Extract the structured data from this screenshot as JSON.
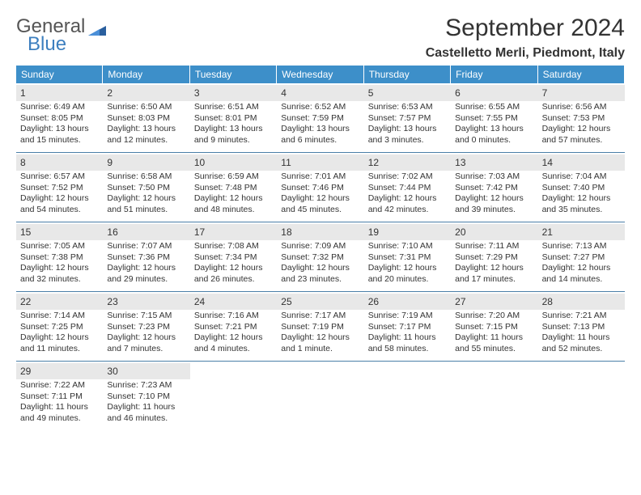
{
  "logo": {
    "line1": "General",
    "line2": "Blue"
  },
  "title": "September 2024",
  "location": "Castelletto Merli, Piedmont, Italy",
  "colors": {
    "header_bg": "#3d8fc9",
    "header_text": "#ffffff",
    "daynum_bg": "#e8e8e8",
    "cell_border": "#4a7fa8",
    "logo_gray": "#555555",
    "logo_blue": "#3d7fbf"
  },
  "days_of_week": [
    "Sunday",
    "Monday",
    "Tuesday",
    "Wednesday",
    "Thursday",
    "Friday",
    "Saturday"
  ],
  "cells": [
    {
      "d": "1",
      "sr": "Sunrise: 6:49 AM",
      "ss": "Sunset: 8:05 PM",
      "dl": "Daylight: 13 hours and 15 minutes."
    },
    {
      "d": "2",
      "sr": "Sunrise: 6:50 AM",
      "ss": "Sunset: 8:03 PM",
      "dl": "Daylight: 13 hours and 12 minutes."
    },
    {
      "d": "3",
      "sr": "Sunrise: 6:51 AM",
      "ss": "Sunset: 8:01 PM",
      "dl": "Daylight: 13 hours and 9 minutes."
    },
    {
      "d": "4",
      "sr": "Sunrise: 6:52 AM",
      "ss": "Sunset: 7:59 PM",
      "dl": "Daylight: 13 hours and 6 minutes."
    },
    {
      "d": "5",
      "sr": "Sunrise: 6:53 AM",
      "ss": "Sunset: 7:57 PM",
      "dl": "Daylight: 13 hours and 3 minutes."
    },
    {
      "d": "6",
      "sr": "Sunrise: 6:55 AM",
      "ss": "Sunset: 7:55 PM",
      "dl": "Daylight: 13 hours and 0 minutes."
    },
    {
      "d": "7",
      "sr": "Sunrise: 6:56 AM",
      "ss": "Sunset: 7:53 PM",
      "dl": "Daylight: 12 hours and 57 minutes."
    },
    {
      "d": "8",
      "sr": "Sunrise: 6:57 AM",
      "ss": "Sunset: 7:52 PM",
      "dl": "Daylight: 12 hours and 54 minutes."
    },
    {
      "d": "9",
      "sr": "Sunrise: 6:58 AM",
      "ss": "Sunset: 7:50 PM",
      "dl": "Daylight: 12 hours and 51 minutes."
    },
    {
      "d": "10",
      "sr": "Sunrise: 6:59 AM",
      "ss": "Sunset: 7:48 PM",
      "dl": "Daylight: 12 hours and 48 minutes."
    },
    {
      "d": "11",
      "sr": "Sunrise: 7:01 AM",
      "ss": "Sunset: 7:46 PM",
      "dl": "Daylight: 12 hours and 45 minutes."
    },
    {
      "d": "12",
      "sr": "Sunrise: 7:02 AM",
      "ss": "Sunset: 7:44 PM",
      "dl": "Daylight: 12 hours and 42 minutes."
    },
    {
      "d": "13",
      "sr": "Sunrise: 7:03 AM",
      "ss": "Sunset: 7:42 PM",
      "dl": "Daylight: 12 hours and 39 minutes."
    },
    {
      "d": "14",
      "sr": "Sunrise: 7:04 AM",
      "ss": "Sunset: 7:40 PM",
      "dl": "Daylight: 12 hours and 35 minutes."
    },
    {
      "d": "15",
      "sr": "Sunrise: 7:05 AM",
      "ss": "Sunset: 7:38 PM",
      "dl": "Daylight: 12 hours and 32 minutes."
    },
    {
      "d": "16",
      "sr": "Sunrise: 7:07 AM",
      "ss": "Sunset: 7:36 PM",
      "dl": "Daylight: 12 hours and 29 minutes."
    },
    {
      "d": "17",
      "sr": "Sunrise: 7:08 AM",
      "ss": "Sunset: 7:34 PM",
      "dl": "Daylight: 12 hours and 26 minutes."
    },
    {
      "d": "18",
      "sr": "Sunrise: 7:09 AM",
      "ss": "Sunset: 7:32 PM",
      "dl": "Daylight: 12 hours and 23 minutes."
    },
    {
      "d": "19",
      "sr": "Sunrise: 7:10 AM",
      "ss": "Sunset: 7:31 PM",
      "dl": "Daylight: 12 hours and 20 minutes."
    },
    {
      "d": "20",
      "sr": "Sunrise: 7:11 AM",
      "ss": "Sunset: 7:29 PM",
      "dl": "Daylight: 12 hours and 17 minutes."
    },
    {
      "d": "21",
      "sr": "Sunrise: 7:13 AM",
      "ss": "Sunset: 7:27 PM",
      "dl": "Daylight: 12 hours and 14 minutes."
    },
    {
      "d": "22",
      "sr": "Sunrise: 7:14 AM",
      "ss": "Sunset: 7:25 PM",
      "dl": "Daylight: 12 hours and 11 minutes."
    },
    {
      "d": "23",
      "sr": "Sunrise: 7:15 AM",
      "ss": "Sunset: 7:23 PM",
      "dl": "Daylight: 12 hours and 7 minutes."
    },
    {
      "d": "24",
      "sr": "Sunrise: 7:16 AM",
      "ss": "Sunset: 7:21 PM",
      "dl": "Daylight: 12 hours and 4 minutes."
    },
    {
      "d": "25",
      "sr": "Sunrise: 7:17 AM",
      "ss": "Sunset: 7:19 PM",
      "dl": "Daylight: 12 hours and 1 minute."
    },
    {
      "d": "26",
      "sr": "Sunrise: 7:19 AM",
      "ss": "Sunset: 7:17 PM",
      "dl": "Daylight: 11 hours and 58 minutes."
    },
    {
      "d": "27",
      "sr": "Sunrise: 7:20 AM",
      "ss": "Sunset: 7:15 PM",
      "dl": "Daylight: 11 hours and 55 minutes."
    },
    {
      "d": "28",
      "sr": "Sunrise: 7:21 AM",
      "ss": "Sunset: 7:13 PM",
      "dl": "Daylight: 11 hours and 52 minutes."
    },
    {
      "d": "29",
      "sr": "Sunrise: 7:22 AM",
      "ss": "Sunset: 7:11 PM",
      "dl": "Daylight: 11 hours and 49 minutes."
    },
    {
      "d": "30",
      "sr": "Sunrise: 7:23 AM",
      "ss": "Sunset: 7:10 PM",
      "dl": "Daylight: 11 hours and 46 minutes."
    }
  ]
}
